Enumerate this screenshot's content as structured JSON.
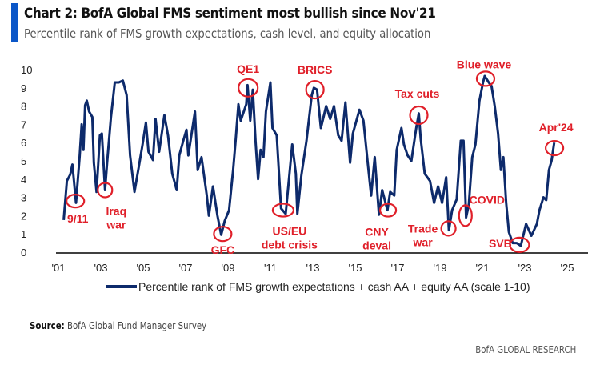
{
  "header": {
    "title": "Chart 2: BofA Global FMS sentiment most bullish since Nov'21",
    "subtitle": "Percentile rank of FMS growth expectations, cash level, and equity allocation"
  },
  "chart_data": {
    "type": "line",
    "title": "Chart 2: BofA Global FMS sentiment most bullish since Nov'21",
    "subtitle": "Percentile rank of FMS growth expectations, cash level, and equity allocation",
    "xlim": [
      2001,
      2025
    ],
    "ylim": [
      0,
      10
    ],
    "x_ticks": [
      "'01",
      "'03",
      "'05",
      "'07",
      "'09",
      "'11",
      "'13",
      "'15",
      "'17",
      "'19",
      "'21",
      "'23",
      "'25"
    ],
    "y_ticks": [
      "0",
      "1",
      "2",
      "3",
      "4",
      "5",
      "6",
      "7",
      "8",
      "9",
      "10"
    ],
    "grid": false,
    "legend_position": "bottom",
    "series": [
      {
        "name": "Percentile rank of FMS growth expectations + cash AA + equity AA (scale 1-10)",
        "color": "#0d2a6b",
        "points": [
          [
            2001.25,
            1.76
          ],
          [
            2001.4,
            3.9
          ],
          [
            2001.56,
            4.25
          ],
          [
            2001.66,
            4.8
          ],
          [
            2001.83,
            2.7
          ],
          [
            2002.0,
            5.2
          ],
          [
            2002.1,
            7.0
          ],
          [
            2002.18,
            5.6
          ],
          [
            2002.26,
            8.05
          ],
          [
            2002.34,
            8.3
          ],
          [
            2002.45,
            7.7
          ],
          [
            2002.6,
            7.4
          ],
          [
            2002.67,
            4.9
          ],
          [
            2002.8,
            3.3
          ],
          [
            2002.96,
            6.4
          ],
          [
            2003.05,
            6.5
          ],
          [
            2003.2,
            3.4
          ],
          [
            2003.3,
            4.9
          ],
          [
            2003.48,
            7.4
          ],
          [
            2003.66,
            9.3
          ],
          [
            2003.85,
            9.3
          ],
          [
            2004.04,
            9.4
          ],
          [
            2004.22,
            8.6
          ],
          [
            2004.38,
            5.3
          ],
          [
            2004.59,
            3.3
          ],
          [
            2004.78,
            4.6
          ],
          [
            2004.97,
            5.9
          ],
          [
            2005.13,
            7.1
          ],
          [
            2005.25,
            5.5
          ],
          [
            2005.46,
            5.05
          ],
          [
            2005.58,
            7.3
          ],
          [
            2005.75,
            5.5
          ],
          [
            2006.0,
            7.5
          ],
          [
            2006.17,
            6.4
          ],
          [
            2006.37,
            4.3
          ],
          [
            2006.58,
            3.4
          ],
          [
            2006.7,
            5.3
          ],
          [
            2006.89,
            6.1
          ],
          [
            2007.04,
            6.7
          ],
          [
            2007.13,
            5.3
          ],
          [
            2007.44,
            7.7
          ],
          [
            2007.57,
            4.5
          ],
          [
            2007.75,
            5.2
          ],
          [
            2008.0,
            3.1
          ],
          [
            2008.1,
            2.0
          ],
          [
            2008.29,
            3.6
          ],
          [
            2008.5,
            2.0
          ],
          [
            2008.68,
            0.95
          ],
          [
            2008.84,
            1.7
          ],
          [
            2009.05,
            2.3
          ],
          [
            2009.24,
            4.5
          ],
          [
            2009.36,
            6.1
          ],
          [
            2009.49,
            8.1
          ],
          [
            2009.6,
            7.2
          ],
          [
            2009.86,
            8.1
          ],
          [
            2009.92,
            9.15
          ],
          [
            2010.05,
            7.2
          ],
          [
            2010.17,
            8.9
          ],
          [
            2010.3,
            6.1
          ],
          [
            2010.42,
            4.0
          ],
          [
            2010.54,
            5.6
          ],
          [
            2010.67,
            5.2
          ],
          [
            2010.79,
            7.7
          ],
          [
            2011.0,
            9.3
          ],
          [
            2011.1,
            6.8
          ],
          [
            2011.3,
            6.4
          ],
          [
            2011.5,
            2.4
          ],
          [
            2011.72,
            2.1
          ],
          [
            2012.03,
            5.9
          ],
          [
            2012.2,
            4.3
          ],
          [
            2012.27,
            2.1
          ],
          [
            2012.46,
            4.2
          ],
          [
            2012.7,
            6.1
          ],
          [
            2012.83,
            7.4
          ],
          [
            2012.95,
            8.6
          ],
          [
            2013.05,
            9.0
          ],
          [
            2013.2,
            8.9
          ],
          [
            2013.38,
            6.8
          ],
          [
            2013.63,
            8.0
          ],
          [
            2013.82,
            7.3
          ],
          [
            2014.0,
            8.0
          ],
          [
            2014.2,
            6.4
          ],
          [
            2014.36,
            6.1
          ],
          [
            2014.54,
            8.2
          ],
          [
            2014.76,
            4.9
          ],
          [
            2014.89,
            6.5
          ],
          [
            2015.2,
            7.8
          ],
          [
            2015.39,
            7.2
          ],
          [
            2015.58,
            5.0
          ],
          [
            2015.75,
            3.1
          ],
          [
            2015.92,
            5.2
          ],
          [
            2016.12,
            2.05
          ],
          [
            2016.27,
            3.4
          ],
          [
            2016.52,
            2.3
          ],
          [
            2016.65,
            3.3
          ],
          [
            2016.84,
            3.1
          ],
          [
            2016.96,
            5.6
          ],
          [
            2017.18,
            6.8
          ],
          [
            2017.3,
            5.9
          ],
          [
            2017.47,
            5.3
          ],
          [
            2017.65,
            5.0
          ],
          [
            2017.88,
            6.8
          ],
          [
            2018.0,
            7.6
          ],
          [
            2018.09,
            6.2
          ],
          [
            2018.28,
            4.3
          ],
          [
            2018.53,
            3.9
          ],
          [
            2018.72,
            2.7
          ],
          [
            2018.91,
            3.6
          ],
          [
            2019.1,
            2.7
          ],
          [
            2019.29,
            4.1
          ],
          [
            2019.42,
            1.2
          ],
          [
            2019.57,
            2.3
          ],
          [
            2019.79,
            2.9
          ],
          [
            2019.98,
            6.1
          ],
          [
            2020.11,
            6.1
          ],
          [
            2020.23,
            1.9
          ],
          [
            2020.36,
            2.6
          ],
          [
            2020.52,
            5.2
          ],
          [
            2020.67,
            5.9
          ],
          [
            2020.86,
            8.3
          ],
          [
            2021.03,
            9.3
          ],
          [
            2021.11,
            9.65
          ],
          [
            2021.3,
            9.3
          ],
          [
            2021.43,
            9.1
          ],
          [
            2021.58,
            8.0
          ],
          [
            2021.74,
            6.5
          ],
          [
            2021.87,
            4.5
          ],
          [
            2021.99,
            5.2
          ],
          [
            2022.12,
            2.7
          ],
          [
            2022.25,
            1.1
          ],
          [
            2022.43,
            0.5
          ],
          [
            2022.62,
            0.5
          ],
          [
            2022.81,
            0.35
          ],
          [
            2023.06,
            1.55
          ],
          [
            2023.31,
            0.9
          ],
          [
            2023.57,
            1.55
          ],
          [
            2023.69,
            2.3
          ],
          [
            2023.88,
            3.0
          ],
          [
            2024.01,
            2.85
          ],
          [
            2024.14,
            4.5
          ],
          [
            2024.26,
            5.0
          ],
          [
            2024.39,
            6.0
          ]
        ]
      }
    ],
    "annotations": [
      {
        "lines": [
          "9/11"
        ],
        "x": 2001.8,
        "y": 2.8
      },
      {
        "lines": [
          "Iraq",
          "war"
        ],
        "x": 2003.2,
        "y": 3.4
      },
      {
        "lines": [
          "QE1"
        ],
        "x": 2009.95,
        "y": 9.0
      },
      {
        "lines": [
          "GFC"
        ],
        "x": 2008.75,
        "y": 1.0
      },
      {
        "lines": [
          "US/EU",
          "debt crisis"
        ],
        "x": 2011.6,
        "y": 2.3
      },
      {
        "lines": [
          "BRICS"
        ],
        "x": 2013.1,
        "y": 8.9
      },
      {
        "lines": [
          "Tax cuts"
        ],
        "x": 2018.0,
        "y": 7.5
      },
      {
        "lines": [
          "CNY",
          "deval"
        ],
        "x": 2016.55,
        "y": 2.3
      },
      {
        "lines": [
          "Trade",
          "war"
        ],
        "x": 2019.4,
        "y": 1.3
      },
      {
        "lines": [
          "COVID"
        ],
        "x": 2020.2,
        "y": 2.0
      },
      {
        "lines": [
          "Blue wave"
        ],
        "x": 2021.15,
        "y": 9.5
      },
      {
        "lines": [
          "SVB"
        ],
        "x": 2022.75,
        "y": 0.4
      },
      {
        "lines": [
          "Apr'24"
        ],
        "x": 2024.4,
        "y": 5.7
      }
    ],
    "annotation_color": "#e0202a"
  },
  "legend": {
    "label": "Percentile rank of FMS growth expectations + cash AA + equity AA (scale 1-10)"
  },
  "source": {
    "label": "Source:",
    "text": "BofA Global Fund Manager Survey"
  },
  "footer": {
    "brand": "BofA GLOBAL RESEARCH"
  }
}
